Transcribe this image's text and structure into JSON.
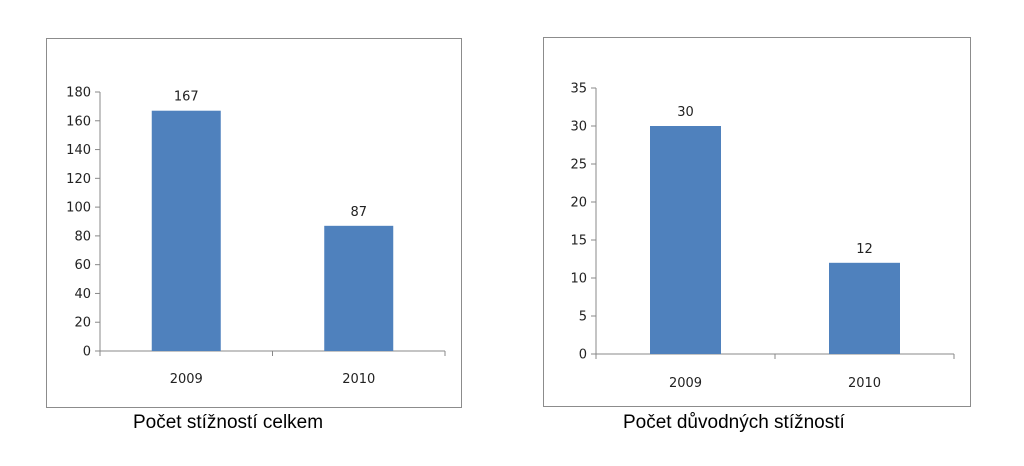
{
  "chart_data": [
    {
      "type": "bar",
      "categories": [
        "2009",
        "2010"
      ],
      "values": [
        167,
        87
      ],
      "data_labels": [
        "167",
        "87"
      ],
      "ylim": [
        0,
        180
      ],
      "yticks": [
        0,
        20,
        40,
        60,
        80,
        100,
        120,
        140,
        160,
        180
      ],
      "ytick_labels": [
        "0",
        "20",
        "40",
        "60",
        "80",
        "100",
        "120",
        "140",
        "160",
        "180"
      ],
      "caption": "Počet stížností celkem",
      "bar_color": "#4f81bd",
      "grid": false,
      "legend": "none"
    },
    {
      "type": "bar",
      "categories": [
        "2009",
        "2010"
      ],
      "values": [
        30,
        12
      ],
      "data_labels": [
        "30",
        "12"
      ],
      "ylim": [
        0,
        35
      ],
      "yticks": [
        0,
        5,
        10,
        15,
        20,
        25,
        30,
        35
      ],
      "ytick_labels": [
        "0",
        "5",
        "10",
        "15",
        "20",
        "25",
        "30",
        "35"
      ],
      "caption": "Počet důvodných stížností",
      "bar_color": "#4f81bd",
      "grid": false,
      "legend": "none"
    }
  ]
}
